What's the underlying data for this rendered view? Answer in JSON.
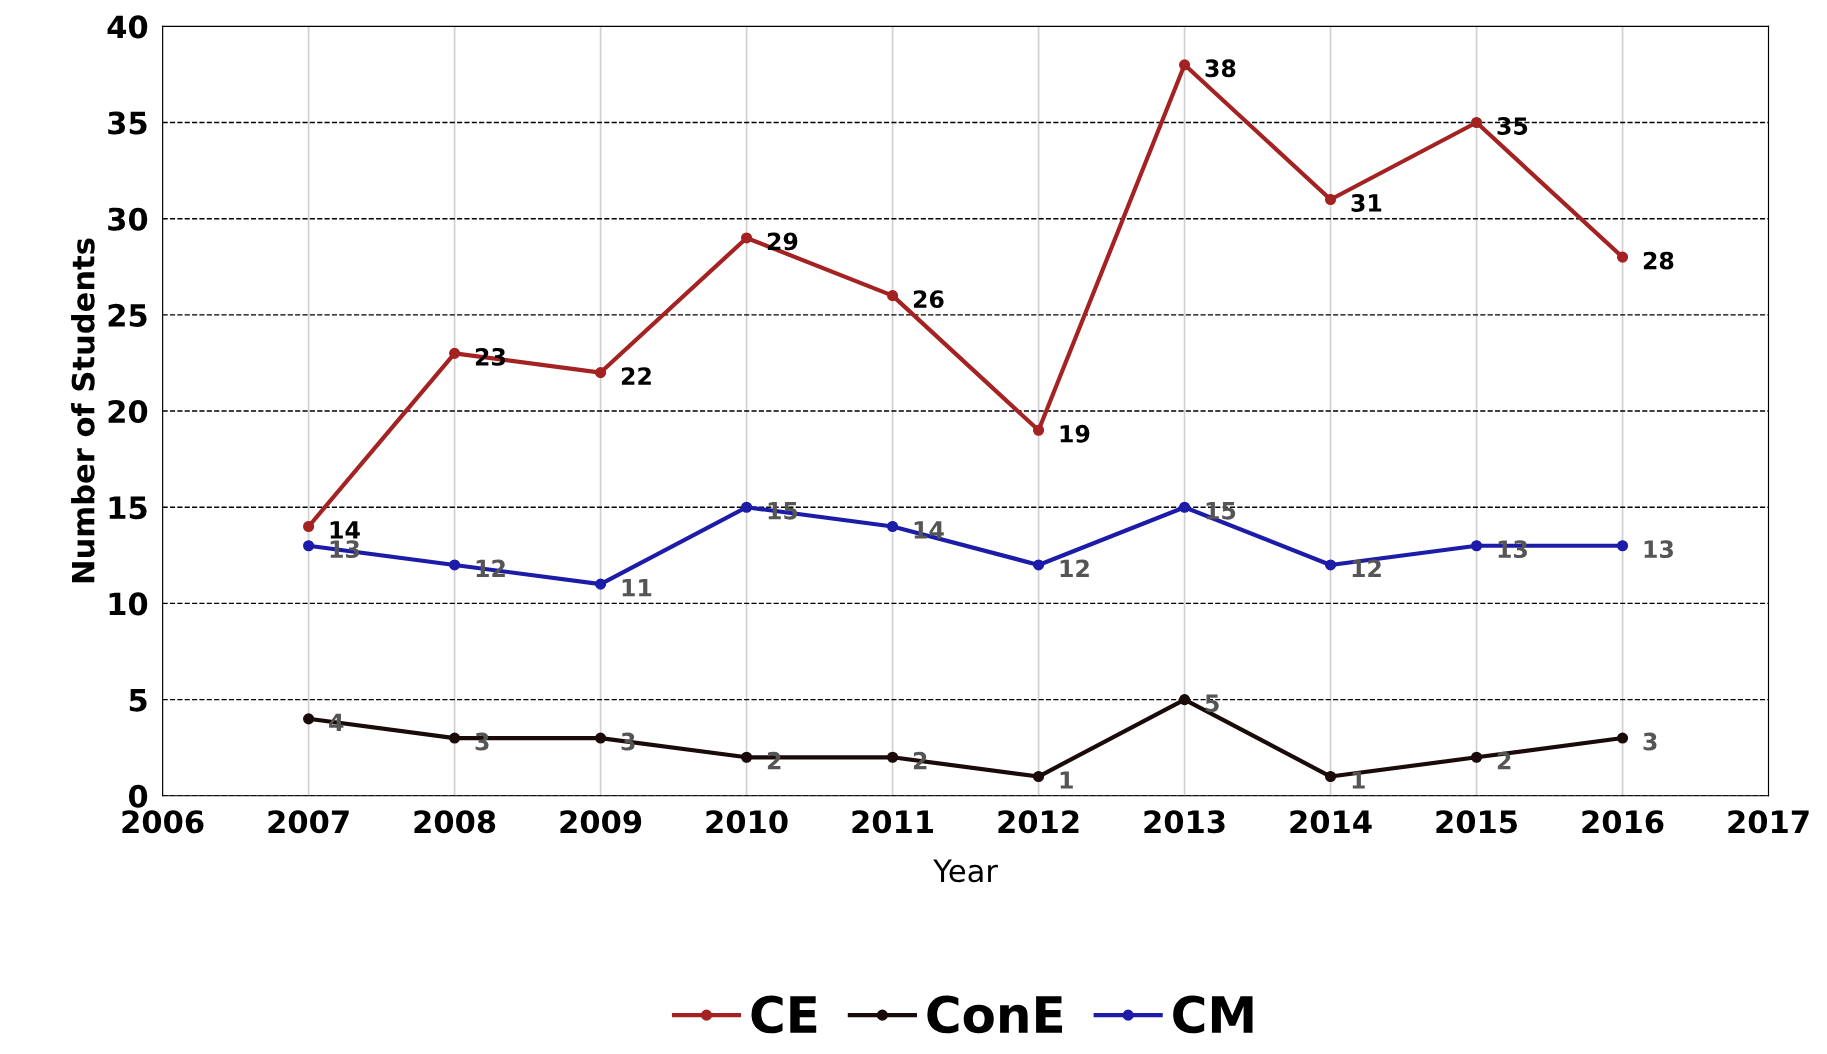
{
  "chart_data": {
    "type": "line",
    "xlabel": "Year",
    "ylabel": "Number of Students",
    "x": [
      2007,
      2008,
      2009,
      2010,
      2011,
      2012,
      2013,
      2014,
      2015,
      2016
    ],
    "series": [
      {
        "name": "CE",
        "color": "#a52222",
        "values": [
          14,
          23,
          22,
          29,
          26,
          19,
          38,
          31,
          35,
          28
        ]
      },
      {
        "name": "ConE",
        "color": "#1a0a0a",
        "values": [
          4,
          3,
          3,
          2,
          2,
          1,
          5,
          1,
          2,
          3
        ]
      },
      {
        "name": "CM",
        "color": "#1c1ca8",
        "values": [
          13,
          12,
          11,
          15,
          14,
          12,
          15,
          12,
          13,
          13
        ]
      }
    ],
    "xlim": [
      2006,
      2017
    ],
    "xticks": [
      2006,
      2007,
      2008,
      2009,
      2010,
      2011,
      2012,
      2013,
      2014,
      2015,
      2016,
      2017
    ],
    "ylim": [
      0,
      40
    ],
    "yticks": [
      0,
      5,
      10,
      15,
      20,
      25,
      30,
      35,
      40
    ],
    "grid": true,
    "legend": "bottom",
    "marker": "circle",
    "line_style": "solid",
    "data_labels": true
  }
}
